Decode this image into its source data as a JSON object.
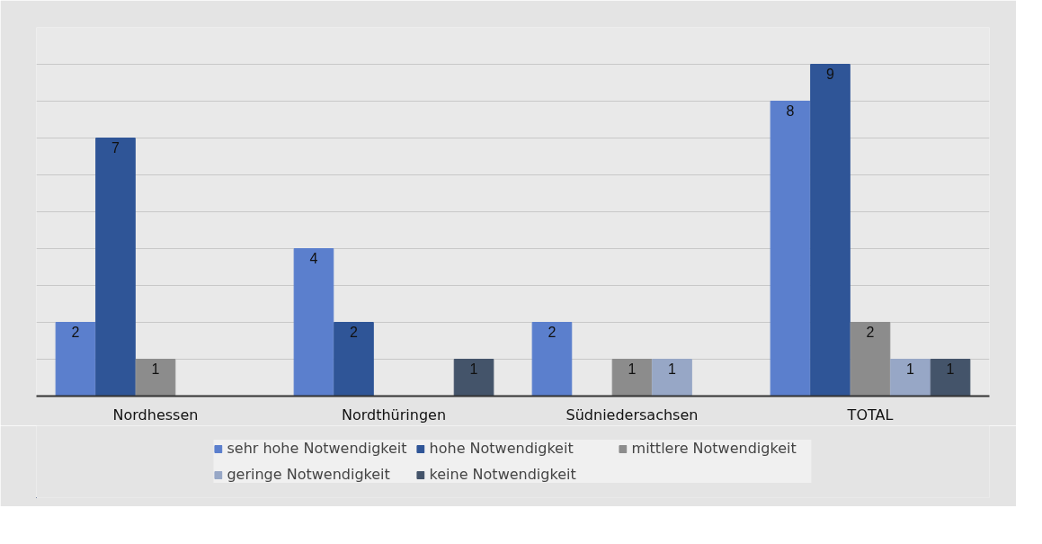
{
  "chart_data": {
    "type": "bar",
    "categories": [
      "Nordhessen",
      "Nordthüringen",
      "Südniedersachsen",
      "TOTAL"
    ],
    "series": [
      {
        "name": "sehr hohe Notwendigkeit",
        "color": "#5b7fcd",
        "values": [
          2,
          4,
          2,
          8
        ]
      },
      {
        "name": "hohe Notwendigkeit",
        "color": "#2f5597",
        "values": [
          7,
          2,
          null,
          9
        ]
      },
      {
        "name": "mittlere Notwendigkeit",
        "color": "#8c8c8c",
        "values": [
          1,
          null,
          1,
          2
        ]
      },
      {
        "name": "geringe Notwendigkeit",
        "color": "#97a7c6",
        "values": [
          null,
          null,
          1,
          1
        ]
      },
      {
        "name": "keine Notwendigkeit",
        "color": "#44546a",
        "values": [
          null,
          1,
          null,
          1
        ]
      }
    ],
    "ylim": [
      0,
      10
    ],
    "yticks": [
      {
        "value": 1,
        "label": null
      },
      {
        "value": 2,
        "label": null
      },
      {
        "value": 3,
        "label": null
      },
      {
        "value": 4,
        "label": null
      },
      {
        "value": 5,
        "label": null
      },
      {
        "value": 6,
        "label": null
      },
      {
        "value": 7,
        "label": null
      },
      {
        "value": 8,
        "label": null
      },
      {
        "value": 9,
        "label": null
      },
      {
        "value": 10,
        "label": null
      }
    ],
    "tick_labels": "x",
    "grid": "y",
    "legend": "bottom",
    "data_labels": true
  }
}
